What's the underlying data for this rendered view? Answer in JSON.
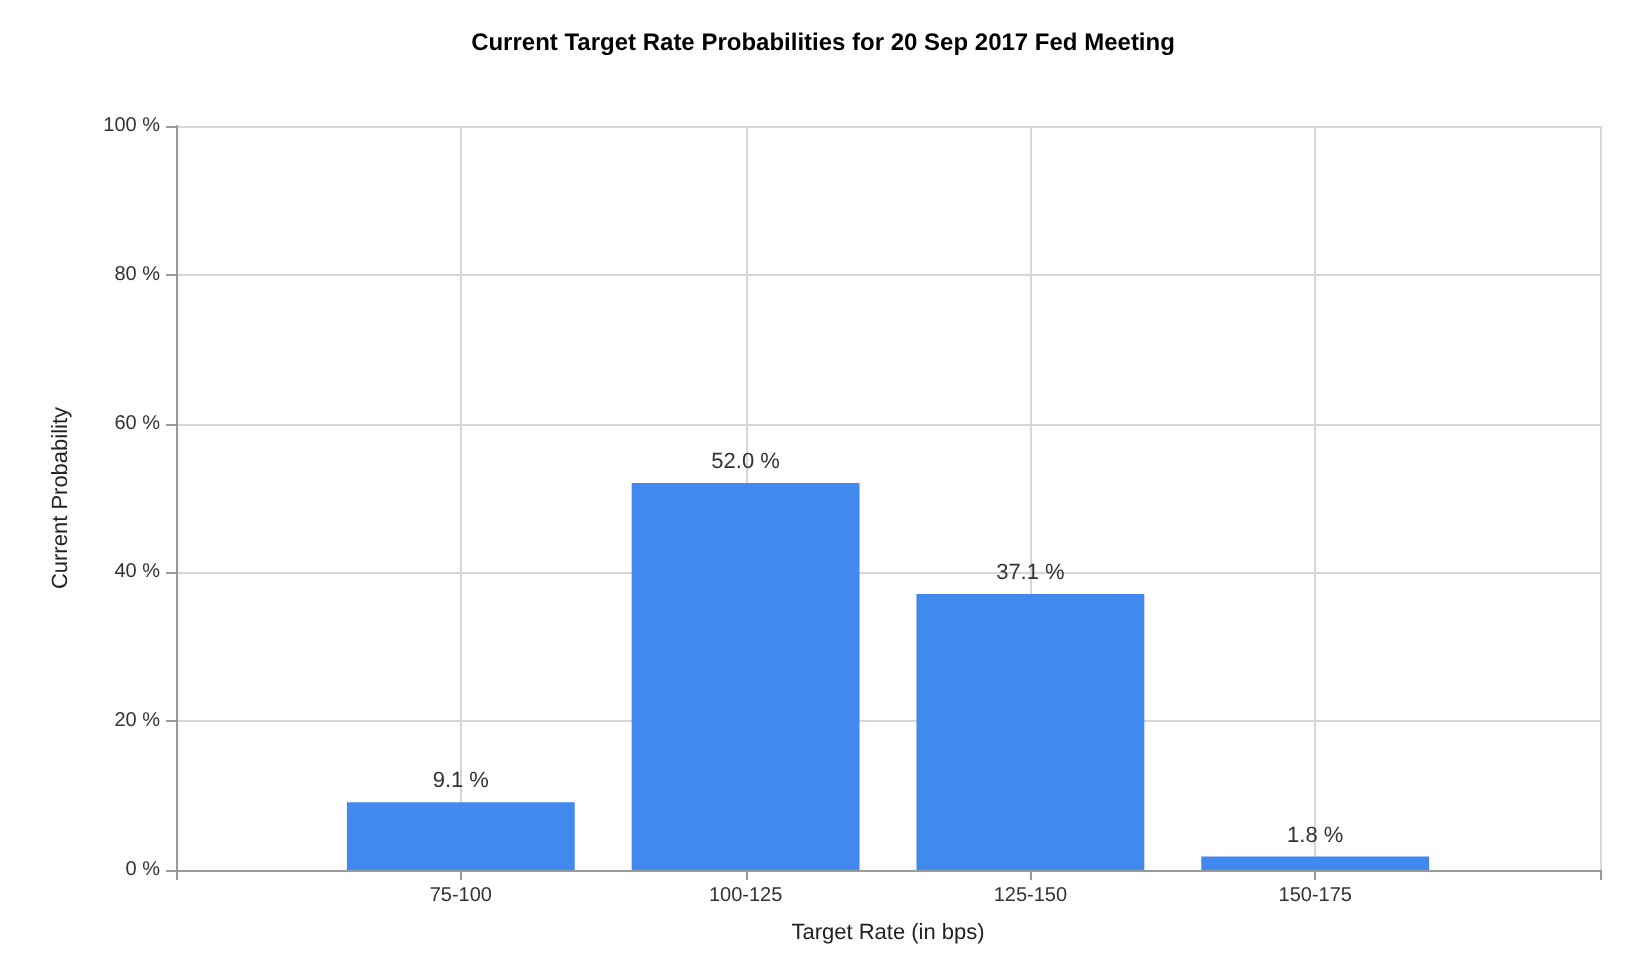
{
  "chart_data": {
    "type": "bar",
    "title": "Current Target Rate Probabilities for 20 Sep 2017 Fed Meeting",
    "xlabel": "Target Rate (in bps)",
    "ylabel": "Current Probability",
    "categories": [
      "75-100",
      "100-125",
      "125-150",
      "150-175"
    ],
    "values": [
      9.1,
      52.0,
      37.1,
      1.8
    ],
    "value_labels": [
      "9.1 %",
      "52.0 %",
      "37.1 %",
      "1.8 %"
    ],
    "color": "#4189ee",
    "ylim": [
      0,
      100
    ],
    "yticks": [
      {
        "value": 0,
        "label": "0 %"
      },
      {
        "value": 20,
        "label": "20 %"
      },
      {
        "value": 40,
        "label": "40 %"
      },
      {
        "value": 60,
        "label": "60 %"
      },
      {
        "value": 80,
        "label": "80 %"
      },
      {
        "value": 100,
        "label": "100 %"
      }
    ],
    "grid": true
  }
}
